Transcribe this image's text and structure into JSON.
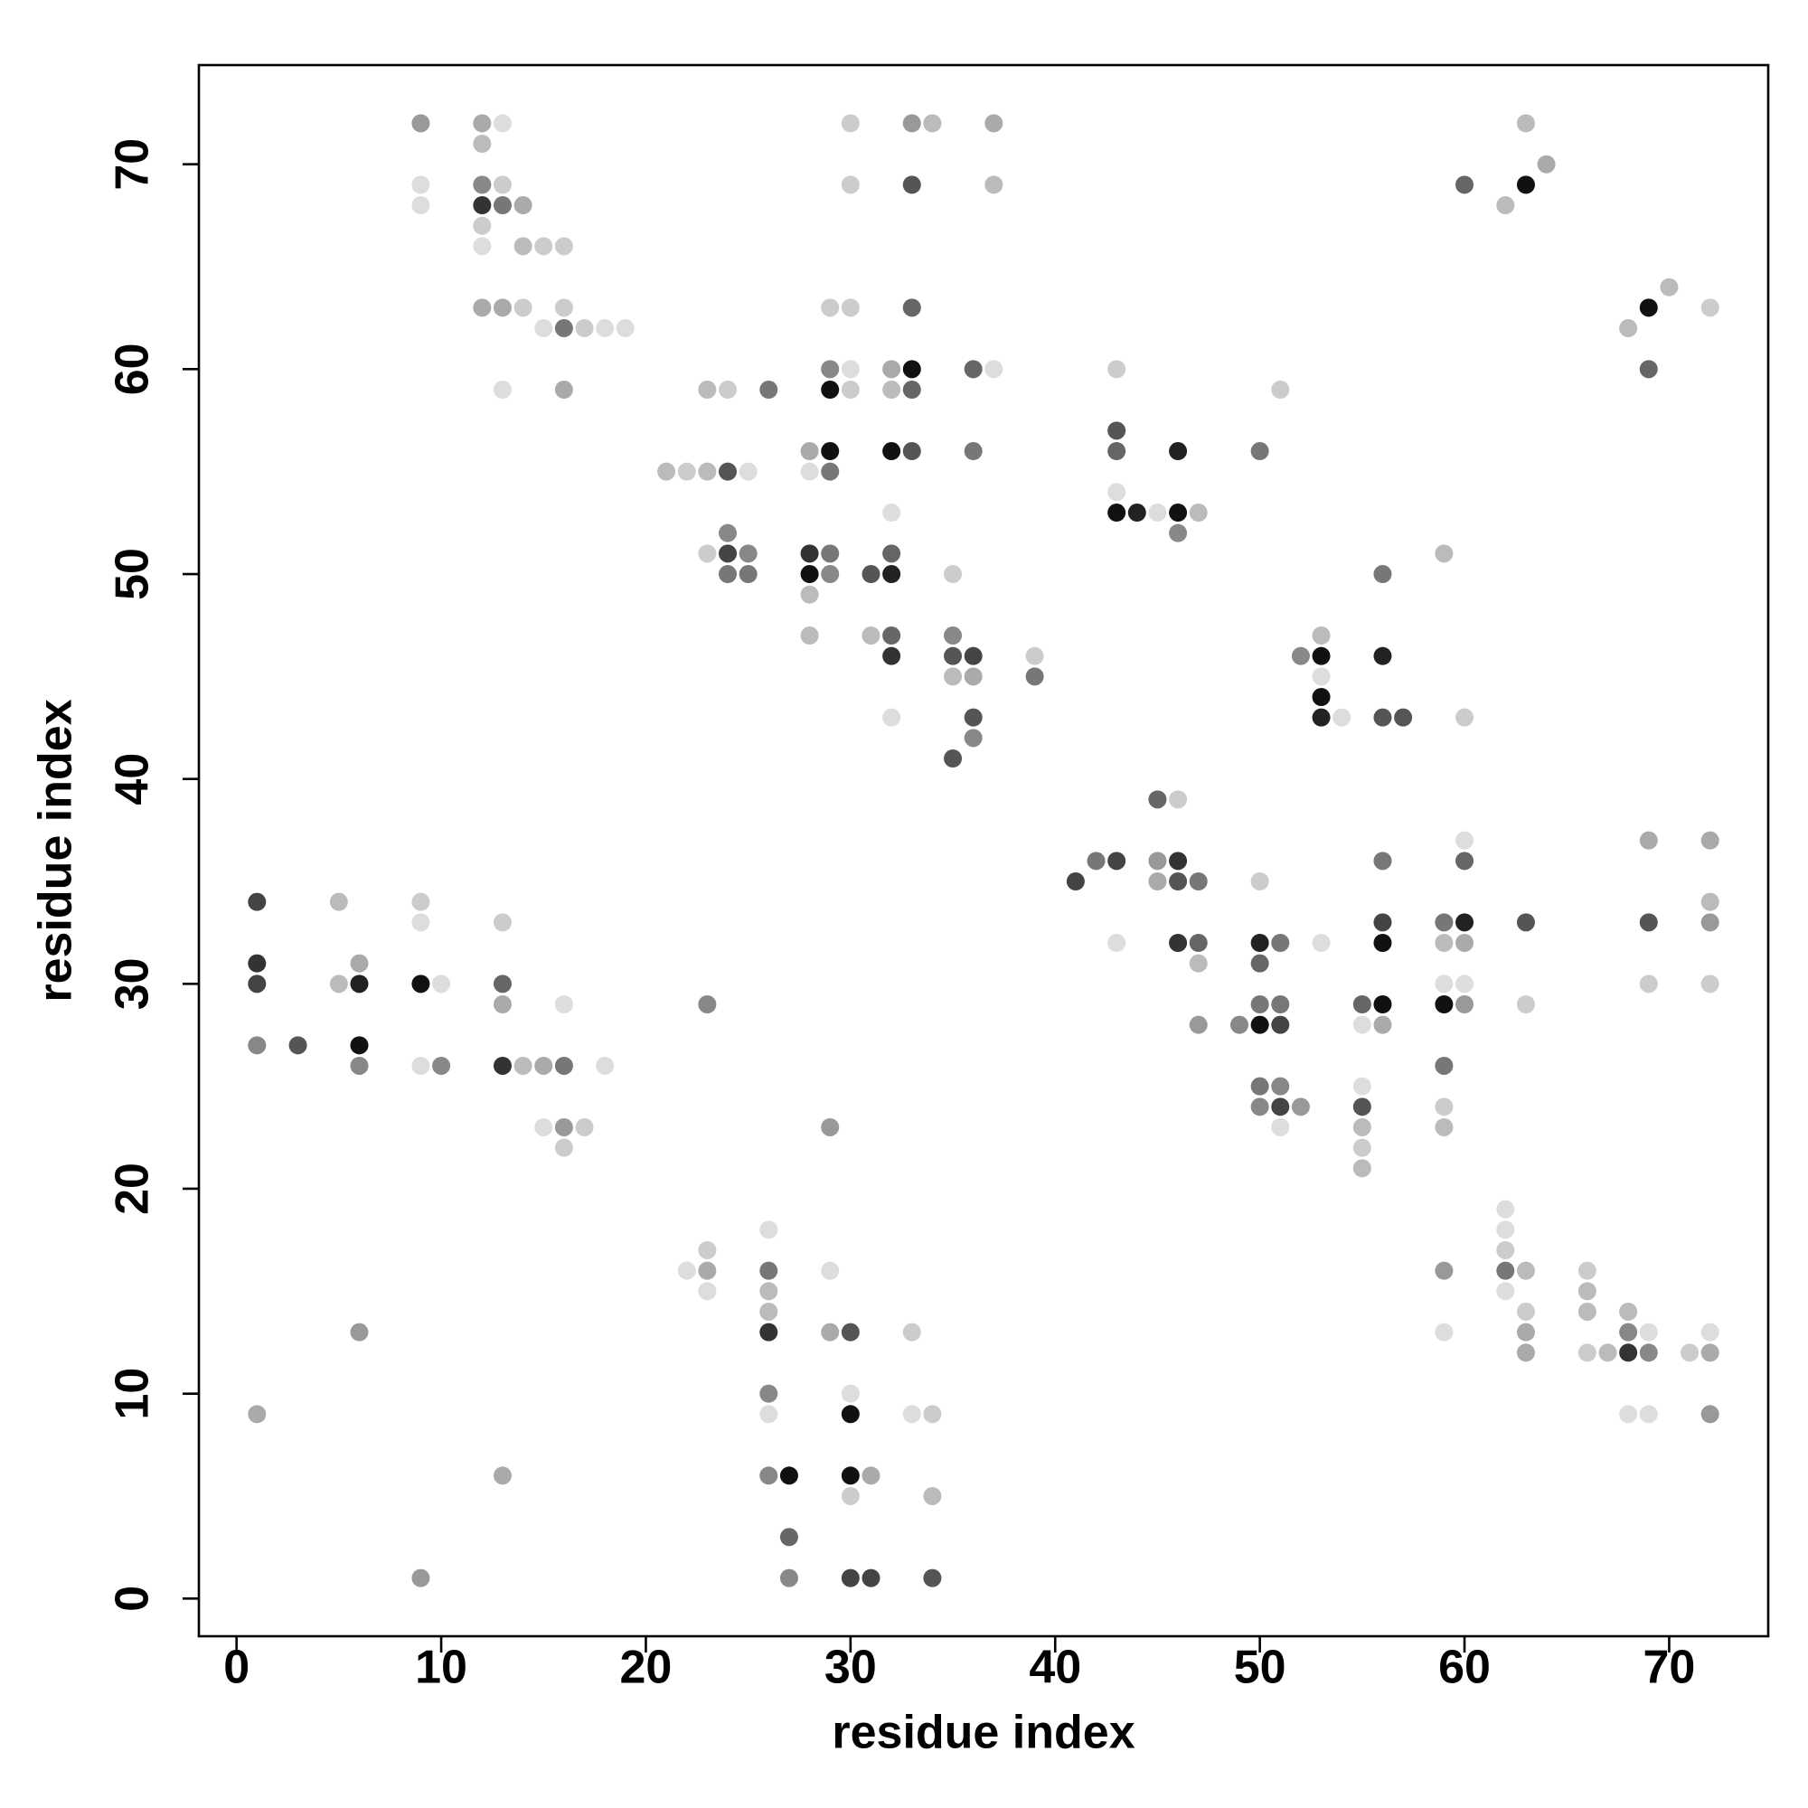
{
  "chart_data": {
    "type": "scatter",
    "xlabel": "residue index",
    "ylabel": "residue index",
    "xlim": [
      -1.84,
      74.84
    ],
    "ylim": [
      -1.84,
      74.84
    ],
    "xticks": [
      0,
      10,
      20,
      30,
      40,
      50,
      60,
      70
    ],
    "yticks": [
      0,
      10,
      20,
      30,
      40,
      50,
      60,
      70
    ],
    "x": [
      9,
      12,
      13,
      30,
      33,
      34,
      37,
      63,
      12,
      64,
      9,
      12,
      13,
      30,
      33,
      37,
      60,
      63,
      9,
      12,
      13,
      14,
      62,
      12,
      12,
      14,
      15,
      16,
      70,
      12,
      13,
      14,
      16,
      29,
      30,
      33,
      69,
      72,
      15,
      16,
      17,
      18,
      19,
      68,
      29,
      30,
      32,
      33,
      36,
      37,
      43,
      69,
      13,
      16,
      23,
      24,
      26,
      29,
      30,
      32,
      33,
      51,
      43,
      28,
      29,
      32,
      33,
      36,
      43,
      46,
      50,
      21,
      22,
      23,
      24,
      25,
      28,
      29,
      43,
      32,
      43,
      44,
      45,
      46,
      47,
      24,
      46,
      23,
      24,
      25,
      28,
      29,
      32,
      59,
      24,
      25,
      28,
      29,
      31,
      32,
      35,
      56,
      28,
      28,
      31,
      32,
      35,
      53,
      32,
      35,
      36,
      39,
      52,
      53,
      56,
      35,
      36,
      39,
      53,
      53,
      32,
      36,
      53,
      54,
      56,
      57,
      60,
      36,
      35,
      45,
      46,
      60,
      69,
      72,
      42,
      43,
      45,
      46,
      56,
      60,
      41,
      45,
      46,
      47,
      50,
      1,
      5,
      9,
      72,
      9,
      13,
      56,
      59,
      60,
      63,
      69,
      72,
      43,
      46,
      47,
      50,
      51,
      53,
      56,
      59,
      60,
      1,
      6,
      47,
      50,
      1,
      5,
      6,
      9,
      10,
      13,
      59,
      60,
      69,
      72,
      13,
      16,
      23,
      50,
      51,
      55,
      56,
      59,
      60,
      63,
      47,
      49,
      50,
      51,
      55,
      56,
      1,
      3,
      6,
      6,
      9,
      10,
      13,
      14,
      15,
      16,
      18,
      59,
      50,
      51,
      55,
      50,
      51,
      52,
      55,
      59,
      15,
      16,
      17,
      29,
      51,
      55,
      59,
      16,
      55,
      55,
      62,
      26,
      62,
      23,
      62,
      22,
      23,
      26,
      29,
      59,
      62,
      63,
      66,
      23,
      26,
      62,
      66,
      26,
      63,
      66,
      68,
      6,
      26,
      29,
      30,
      33,
      59,
      63,
      68,
      69,
      72,
      63,
      66,
      67,
      68,
      69,
      71,
      72,
      26,
      30,
      1,
      26,
      30,
      33,
      34,
      68,
      69,
      72,
      13,
      26,
      27,
      30,
      31,
      30,
      34,
      27,
      9,
      27,
      30,
      31,
      34
    ],
    "y": [
      72,
      72,
      72,
      72,
      72,
      72,
      72,
      72,
      71,
      70,
      69,
      69,
      69,
      69,
      69,
      69,
      69,
      69,
      68,
      68,
      68,
      68,
      68,
      67,
      66,
      66,
      66,
      66,
      64,
      63,
      63,
      63,
      63,
      63,
      63,
      63,
      63,
      63,
      62,
      62,
      62,
      62,
      62,
      62,
      60,
      60,
      60,
      60,
      60,
      60,
      60,
      60,
      59,
      59,
      59,
      59,
      59,
      59,
      59,
      59,
      59,
      59,
      57,
      56,
      56,
      56,
      56,
      56,
      56,
      56,
      56,
      55,
      55,
      55,
      55,
      55,
      55,
      55,
      54,
      53,
      53,
      53,
      53,
      53,
      53,
      52,
      52,
      51,
      51,
      51,
      51,
      51,
      51,
      51,
      50,
      50,
      50,
      50,
      50,
      50,
      50,
      50,
      49,
      47,
      47,
      47,
      47,
      47,
      46,
      46,
      46,
      46,
      46,
      46,
      46,
      45,
      45,
      45,
      45,
      44,
      43,
      43,
      43,
      43,
      43,
      43,
      43,
      42,
      41,
      39,
      39,
      37,
      37,
      37,
      36,
      36,
      36,
      36,
      36,
      36,
      35,
      35,
      35,
      35,
      35,
      34,
      34,
      34,
      34,
      33,
      33,
      33,
      33,
      33,
      33,
      33,
      33,
      32,
      32,
      32,
      32,
      32,
      32,
      32,
      32,
      32,
      31,
      31,
      31,
      31,
      30,
      30,
      30,
      30,
      30,
      30,
      30,
      30,
      30,
      30,
      29,
      29,
      29,
      29,
      29,
      29,
      29,
      29,
      29,
      29,
      28,
      28,
      28,
      28,
      28,
      28,
      27,
      27,
      27,
      26,
      26,
      26,
      26,
      26,
      26,
      26,
      26,
      26,
      25,
      25,
      25,
      24,
      24,
      24,
      24,
      24,
      23,
      23,
      23,
      23,
      23,
      23,
      23,
      22,
      22,
      21,
      19,
      18,
      18,
      17,
      17,
      16,
      16,
      16,
      16,
      16,
      16,
      16,
      16,
      15,
      15,
      15,
      15,
      14,
      14,
      14,
      14,
      13,
      13,
      13,
      13,
      13,
      13,
      13,
      13,
      13,
      13,
      12,
      12,
      12,
      12,
      12,
      12,
      12,
      10,
      10,
      9,
      9,
      9,
      9,
      9,
      9,
      9,
      9,
      6,
      6,
      6,
      6,
      6,
      5,
      5,
      3,
      1,
      1,
      1,
      1,
      1
    ],
    "colors": [
      "#999",
      "#aaa",
      "#ddd",
      "#ccc",
      "#999",
      "#bbb",
      "#aaa",
      "#bbb",
      "#bbb",
      "#aaa",
      "#ddd",
      "#888",
      "#ccc",
      "#ccc",
      "#555",
      "#bbb",
      "#666",
      "#111",
      "#ddd",
      "#333",
      "#777",
      "#aaa",
      "#bbb",
      "#ccc",
      "#ddd",
      "#bbb",
      "#ccc",
      "#ccc",
      "#bbb",
      "#aaa",
      "#aaa",
      "#ccc",
      "#ccc",
      "#ccc",
      "#ccc",
      "#666",
      "#111",
      "#ccc",
      "#ddd",
      "#777",
      "#ccc",
      "#ddd",
      "#ddd",
      "#bbb",
      "#888",
      "#ddd",
      "#aaa",
      "#111",
      "#666",
      "#ddd",
      "#ccc",
      "#666",
      "#ddd",
      "#aaa",
      "#bbb",
      "#ccc",
      "#777",
      "#111",
      "#ccc",
      "#bbb",
      "#666",
      "#ccc",
      "#555",
      "#aaa",
      "#111",
      "#111",
      "#555",
      "#777",
      "#666",
      "#222",
      "#777",
      "#bbb",
      "#ccc",
      "#bbb",
      "#555",
      "#ddd",
      "#ddd",
      "#777",
      "#ddd",
      "#ddd",
      "#111",
      "#222",
      "#ddd",
      "#111",
      "#bbb",
      "#888",
      "#888",
      "#ccc",
      "#444",
      "#888",
      "#333",
      "#777",
      "#666",
      "#bbb",
      "#777",
      "#777",
      "#111",
      "#888",
      "#555",
      "#222",
      "#ccc",
      "#777",
      "#bbb",
      "#bbb",
      "#bbb",
      "#666",
      "#888",
      "#bbb",
      "#333",
      "#555",
      "#444",
      "#ccc",
      "#888",
      "#111",
      "#222",
      "#bbb",
      "#aaa",
      "#777",
      "#ddd",
      "#111",
      "#ddd",
      "#555",
      "#222",
      "#ddd",
      "#555",
      "#555",
      "#ccc",
      "#888",
      "#555",
      "#666",
      "#ccc",
      "#ddd",
      "#aaa",
      "#aaa",
      "#777",
      "#444",
      "#999",
      "#333",
      "#777",
      "#666",
      "#444",
      "#aaa",
      "#555",
      "#777",
      "#ccc",
      "#444",
      "#bbb",
      "#ccc",
      "#bbb",
      "#ddd",
      "#ccc",
      "#444",
      "#777",
      "#222",
      "#555",
      "#555",
      "#999",
      "#ddd",
      "#333",
      "#666",
      "#222",
      "#777",
      "#ddd",
      "#111",
      "#bbb",
      "#aaa",
      "#333",
      "#aaa",
      "#bbb",
      "#666",
      "#444",
      "#bbb",
      "#222",
      "#111",
      "#ddd",
      "#666",
      "#ddd",
      "#ddd",
      "#ccc",
      "#ccc",
      "#aaa",
      "#ddd",
      "#888",
      "#777",
      "#777",
      "#666",
      "#111",
      "#111",
      "#999",
      "#ccc",
      "#999",
      "#888",
      "#111",
      "#444",
      "#ddd",
      "#aaa",
      "#888",
      "#555",
      "#111",
      "#888",
      "#ddd",
      "#888",
      "#333",
      "#bbb",
      "#aaa",
      "#777",
      "#ddd",
      "#777",
      "#777",
      "#888",
      "#ddd",
      "#888",
      "#444",
      "#999",
      "#555",
      "#ccc",
      "#ddd",
      "#999",
      "#ccc",
      "#999",
      "#ddd",
      "#bbb",
      "#bbb",
      "#ccc",
      "#ccc",
      "#bbb",
      "#ddd",
      "#ddd",
      "#ddd",
      "#ccc",
      "#ccc",
      "#ddd",
      "#aaa",
      "#777",
      "#ddd",
      "#999",
      "#777",
      "#bbb",
      "#ccc",
      "#ddd",
      "#bbb",
      "#ddd",
      "#bbb",
      "#bbb",
      "#ccc",
      "#bbb",
      "#bbb",
      "#999",
      "#333",
      "#aaa",
      "#555",
      "#ccc",
      "#ddd",
      "#aaa",
      "#888",
      "#ddd",
      "#ddd",
      "#aaa",
      "#ccc",
      "#bbb",
      "#333",
      "#888",
      "#ccc",
      "#aaa",
      "#888",
      "#ddd",
      "#aaa",
      "#ddd",
      "#111",
      "#ddd",
      "#ccc",
      "#ddd",
      "#ddd",
      "#999",
      "#aaa",
      "#888",
      "#111",
      "#111",
      "#aaa",
      "#ccc",
      "#bbb",
      "#666",
      "#999",
      "#888",
      "#444",
      "#444",
      "#555"
    ]
  }
}
